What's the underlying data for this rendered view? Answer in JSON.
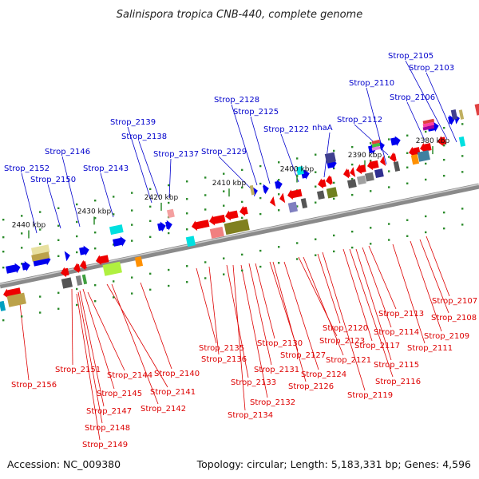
{
  "title": "Salinispora tropica CNB-440, complete genome",
  "footer": {
    "accession": "Accession: NC_009380",
    "summary": "Topology: circular; Length: 5,183,331 bp; Genes: 4,596"
  },
  "colors": {
    "forward_label": "#0000cc",
    "reverse_label": "#dd0000",
    "forward_gene": "#0000ee",
    "reverse_gene": "#ee0000",
    "backbone": "#8a8a8a",
    "tick": "#2a8a2a"
  },
  "kbp_ticks": [
    "2440 kbp",
    "2430 kbp",
    "2420 kbp",
    "2410 kbp",
    "2400 kbp",
    "2390 kbp",
    "2380 kbp"
  ],
  "forward_labels": [
    "Strop_2152",
    "Strop_2150",
    "Strop_2146",
    "Strop_2143",
    "Strop_2139",
    "Strop_2138",
    "Strop_2137",
    "Strop_2129",
    "Strop_2128",
    "Strop_2125",
    "Strop_2122",
    "nhaA",
    "Strop_2112",
    "Strop_2110",
    "Strop_2106",
    "Strop_2105",
    "Strop_2103"
  ],
  "reverse_labels": [
    "Strop_2156",
    "Strop_2151",
    "Strop_2145",
    "Strop_2147",
    "Strop_2148",
    "Strop_2149",
    "Strop_2144",
    "Strop_2141",
    "Strop_2142",
    "Strop_2140",
    "Strop_2135",
    "Strop_2136",
    "Strop_2133",
    "Strop_2134",
    "Strop_2131",
    "Strop_2130",
    "Strop_2132",
    "Strop_2127",
    "Strop_2126",
    "Strop_2124",
    "Strop_2123",
    "Strop_2121",
    "Strop_2120",
    "Strop_2119",
    "Strop_2117",
    "Strop_2116",
    "Strop_2115",
    "Strop_2114",
    "Strop_2113",
    "Strop_2111",
    "Strop_2109",
    "Strop_2108",
    "Strop_2107"
  ]
}
